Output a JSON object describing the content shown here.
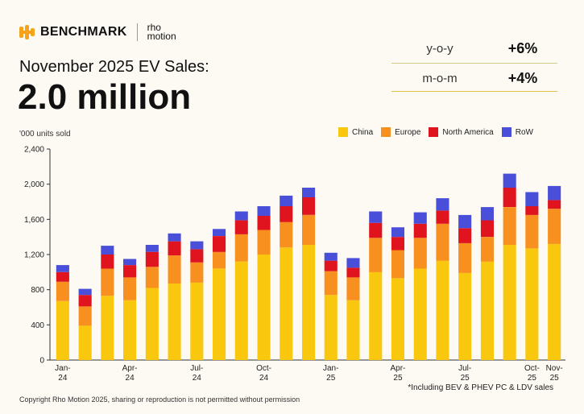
{
  "header": {
    "brand": "BENCHMARK",
    "partner_line1": "rho",
    "partner_line2": "motion",
    "title": "November 2025 EV Sales:",
    "headline_value": "2.0 million"
  },
  "stats": [
    {
      "label": "y-o-y",
      "value": "+6%"
    },
    {
      "label": "m-o-m",
      "value": "+4%"
    }
  ],
  "units_label": "'000 units sold",
  "legend": [
    {
      "name": "China",
      "color": "#f9c80e"
    },
    {
      "name": "Europe",
      "color": "#f7901e"
    },
    {
      "name": "North America",
      "color": "#e0141e"
    },
    {
      "name": "RoW",
      "color": "#4a4fd9"
    }
  ],
  "footnote": "*Including BEV & PHEV PC & LDV sales",
  "copyright": "Copyright Rho Motion 2025, sharing or reproduction is not permitted without permission",
  "chart_data": {
    "type": "bar",
    "stacked": true,
    "x": [
      "Jan-24",
      "Feb-24",
      "Mar-24",
      "Apr-24",
      "May-24",
      "Jun-24",
      "Jul-24",
      "Aug-24",
      "Sep-24",
      "Oct-24",
      "Nov-24",
      "Dec-24",
      "Jan-25",
      "Feb-25",
      "Mar-25",
      "Apr-25",
      "May-25",
      "Jun-25",
      "Jul-25",
      "Aug-25",
      "Sep-25",
      "Oct-25",
      "Nov-25"
    ],
    "x_tick_labels": [
      "Jan-\n24",
      "",
      "",
      "Apr-\n24",
      "",
      "",
      "Jul-\n24",
      "",
      "",
      "Oct-\n24",
      "",
      "",
      "Jan-\n25",
      "",
      "",
      "Apr-\n25",
      "",
      "",
      "Jul-\n25",
      "",
      "",
      "Oct-\n25",
      "Nov-\n25"
    ],
    "series": [
      {
        "name": "China",
        "values": [
          670,
          390,
          730,
          680,
          820,
          870,
          880,
          1040,
          1120,
          1200,
          1280,
          1310,
          740,
          680,
          1000,
          930,
          1040,
          1130,
          990,
          1120,
          1310,
          1270,
          1320
        ]
      },
      {
        "name": "Europe",
        "values": [
          220,
          220,
          310,
          260,
          240,
          320,
          230,
          190,
          310,
          280,
          290,
          340,
          270,
          260,
          390,
          320,
          350,
          420,
          340,
          280,
          430,
          380,
          400
        ]
      },
      {
        "name": "North America",
        "values": [
          110,
          130,
          160,
          140,
          170,
          160,
          150,
          180,
          160,
          160,
          180,
          200,
          120,
          110,
          170,
          150,
          160,
          150,
          170,
          190,
          220,
          100,
          100
        ]
      },
      {
        "name": "RoW",
        "values": [
          80,
          70,
          100,
          70,
          80,
          90,
          90,
          80,
          100,
          110,
          120,
          110,
          90,
          110,
          130,
          110,
          130,
          140,
          150,
          150,
          160,
          160,
          160
        ]
      }
    ],
    "ylim": [
      0,
      2400
    ],
    "y_ticks": [
      0,
      400,
      800,
      1200,
      1600,
      2000,
      2400
    ],
    "y_tick_labels": [
      "0",
      "400",
      "800",
      "1,200",
      "1,600",
      "2,000",
      "2,400"
    ],
    "ylabel": "'000 units sold",
    "legend_position": "top-right",
    "grid": false
  }
}
